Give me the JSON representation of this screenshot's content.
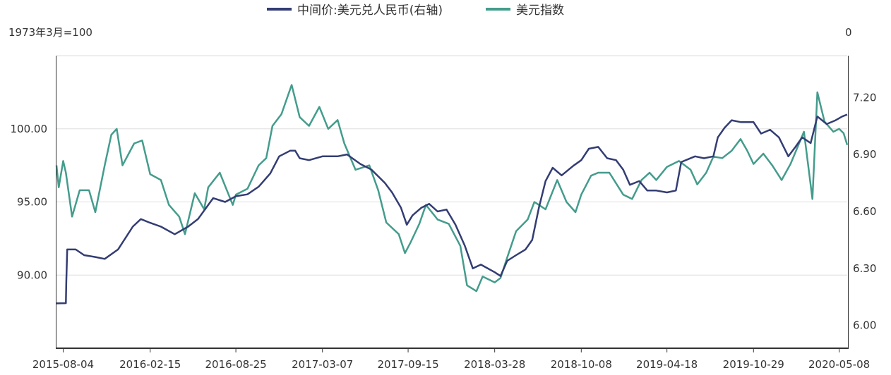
{
  "chart_data": {
    "type": "line",
    "left_axis_unit": "1973年3月=100",
    "right_axis_top_label": "0",
    "y_left": {
      "lim": [
        85.0,
        105.0
      ],
      "ticks": [
        90.0,
        95.0,
        100.0
      ],
      "tick_labels": [
        "90.00",
        "95.00",
        "100.00"
      ]
    },
    "y_right": {
      "lim": [
        5.88,
        7.42
      ],
      "ticks": [
        6.0,
        6.3,
        6.6,
        6.9,
        7.2
      ],
      "tick_labels": [
        "6.00",
        "6.30",
        "6.60",
        "6.90",
        "7.20"
      ]
    },
    "x_ticks": [
      "2015-08-04",
      "2016-02-15",
      "2016-08-25",
      "2017-03-07",
      "2017-09-15",
      "2018-03-28",
      "2018-10-08",
      "2019-04-18",
      "2019-10-29",
      "2020-05-08"
    ],
    "x_range": [
      "2015-07-20",
      "2020-05-26"
    ],
    "grid": true,
    "legend_position": "top-center",
    "series": [
      {
        "name": "中间价:美元兑人民币(右轴)",
        "axis": "right",
        "color": "#333d73",
        "points": [
          [
            "2015-07-20",
            6.116
          ],
          [
            "2015-08-10",
            6.117
          ],
          [
            "2015-08-11",
            6.23
          ],
          [
            "2015-08-13",
            6.4
          ],
          [
            "2015-09-01",
            6.4
          ],
          [
            "2015-09-20",
            6.37
          ],
          [
            "2015-10-15",
            6.36
          ],
          [
            "2015-11-05",
            6.35
          ],
          [
            "2015-12-05",
            6.4
          ],
          [
            "2016-01-07",
            6.52
          ],
          [
            "2016-01-25",
            6.56
          ],
          [
            "2016-02-15",
            6.54
          ],
          [
            "2016-03-10",
            6.52
          ],
          [
            "2016-04-10",
            6.48
          ],
          [
            "2016-05-10",
            6.52
          ],
          [
            "2016-06-01",
            6.56
          ],
          [
            "2016-07-05",
            6.67
          ],
          [
            "2016-08-01",
            6.65
          ],
          [
            "2016-08-25",
            6.68
          ],
          [
            "2016-09-20",
            6.69
          ],
          [
            "2016-10-15",
            6.73
          ],
          [
            "2016-11-10",
            6.8
          ],
          [
            "2016-11-30",
            6.89
          ],
          [
            "2016-12-25",
            6.92
          ],
          [
            "2017-01-05",
            6.92
          ],
          [
            "2017-01-15",
            6.88
          ],
          [
            "2017-02-05",
            6.87
          ],
          [
            "2017-03-07",
            6.89
          ],
          [
            "2017-04-10",
            6.89
          ],
          [
            "2017-05-01",
            6.9
          ],
          [
            "2017-05-31",
            6.85
          ],
          [
            "2017-06-25",
            6.82
          ],
          [
            "2017-07-25",
            6.75
          ],
          [
            "2017-08-10",
            6.7
          ],
          [
            "2017-08-30",
            6.62
          ],
          [
            "2017-09-12",
            6.53
          ],
          [
            "2017-09-25",
            6.58
          ],
          [
            "2017-10-15",
            6.62
          ],
          [
            "2017-11-01",
            6.64
          ],
          [
            "2017-11-20",
            6.6
          ],
          [
            "2017-12-10",
            6.61
          ],
          [
            "2017-12-30",
            6.53
          ],
          [
            "2018-01-20",
            6.42
          ],
          [
            "2018-02-07",
            6.3
          ],
          [
            "2018-02-25",
            6.32
          ],
          [
            "2018-03-28",
            6.28
          ],
          [
            "2018-04-10",
            6.26
          ],
          [
            "2018-04-25",
            6.34
          ],
          [
            "2018-05-15",
            6.37
          ],
          [
            "2018-06-05",
            6.4
          ],
          [
            "2018-06-20",
            6.45
          ],
          [
            "2018-07-05",
            6.62
          ],
          [
            "2018-07-20",
            6.76
          ],
          [
            "2018-08-05",
            6.83
          ],
          [
            "2018-08-25",
            6.79
          ],
          [
            "2018-09-20",
            6.84
          ],
          [
            "2018-10-08",
            6.87
          ],
          [
            "2018-10-25",
            6.93
          ],
          [
            "2018-11-15",
            6.94
          ],
          [
            "2018-12-05",
            6.88
          ],
          [
            "2018-12-25",
            6.87
          ],
          [
            "2019-01-10",
            6.82
          ],
          [
            "2019-01-25",
            6.74
          ],
          [
            "2019-02-15",
            6.76
          ],
          [
            "2019-03-05",
            6.71
          ],
          [
            "2019-03-25",
            6.71
          ],
          [
            "2019-04-18",
            6.7
          ],
          [
            "2019-05-08",
            6.71
          ],
          [
            "2019-05-20",
            6.86
          ],
          [
            "2019-06-20",
            6.89
          ],
          [
            "2019-07-10",
            6.88
          ],
          [
            "2019-07-31",
            6.89
          ],
          [
            "2019-08-10",
            6.99
          ],
          [
            "2019-08-25",
            7.04
          ],
          [
            "2019-09-10",
            7.08
          ],
          [
            "2019-10-01",
            7.07
          ],
          [
            "2019-10-29",
            7.07
          ],
          [
            "2019-11-15",
            7.01
          ],
          [
            "2019-12-05",
            7.03
          ],
          [
            "2019-12-25",
            6.99
          ],
          [
            "2020-01-15",
            6.89
          ],
          [
            "2020-01-31",
            6.94
          ],
          [
            "2020-02-15",
            6.99
          ],
          [
            "2020-03-05",
            6.96
          ],
          [
            "2020-03-20",
            7.1
          ],
          [
            "2020-04-10",
            7.06
          ],
          [
            "2020-04-30",
            7.08
          ],
          [
            "2020-05-15",
            7.1
          ],
          [
            "2020-05-26",
            7.11
          ]
        ]
      },
      {
        "name": "美元指数",
        "axis": "left",
        "color": "#449c8c",
        "points": [
          [
            "2015-07-20",
            97.5
          ],
          [
            "2015-07-25",
            96.0
          ],
          [
            "2015-08-04",
            97.8
          ],
          [
            "2015-08-10",
            97.0
          ],
          [
            "2015-08-24",
            94.0
          ],
          [
            "2015-09-10",
            95.8
          ],
          [
            "2015-10-01",
            95.8
          ],
          [
            "2015-10-15",
            94.3
          ],
          [
            "2015-11-05",
            97.5
          ],
          [
            "2015-11-20",
            99.6
          ],
          [
            "2015-12-02",
            100.0
          ],
          [
            "2015-12-15",
            97.5
          ],
          [
            "2016-01-10",
            99.0
          ],
          [
            "2016-01-28",
            99.2
          ],
          [
            "2016-02-15",
            96.9
          ],
          [
            "2016-03-10",
            96.5
          ],
          [
            "2016-03-28",
            94.8
          ],
          [
            "2016-04-20",
            94.0
          ],
          [
            "2016-05-03",
            92.8
          ],
          [
            "2016-05-25",
            95.6
          ],
          [
            "2016-06-15",
            94.5
          ],
          [
            "2016-06-24",
            96.0
          ],
          [
            "2016-07-20",
            97.0
          ],
          [
            "2016-08-18",
            94.8
          ],
          [
            "2016-08-25",
            95.5
          ],
          [
            "2016-09-20",
            95.9
          ],
          [
            "2016-10-15",
            97.5
          ],
          [
            "2016-11-01",
            98.0
          ],
          [
            "2016-11-15",
            100.2
          ],
          [
            "2016-12-05",
            101.0
          ],
          [
            "2016-12-28",
            103.0
          ],
          [
            "2017-01-15",
            100.8
          ],
          [
            "2017-02-05",
            100.2
          ],
          [
            "2017-02-28",
            101.5
          ],
          [
            "2017-03-20",
            100.0
          ],
          [
            "2017-04-10",
            100.6
          ],
          [
            "2017-04-25",
            99.0
          ],
          [
            "2017-05-20",
            97.2
          ],
          [
            "2017-06-20",
            97.5
          ],
          [
            "2017-07-10",
            95.8
          ],
          [
            "2017-07-28",
            93.6
          ],
          [
            "2017-08-25",
            92.8
          ],
          [
            "2017-09-08",
            91.5
          ],
          [
            "2017-09-20",
            92.2
          ],
          [
            "2017-10-10",
            93.5
          ],
          [
            "2017-10-25",
            94.8
          ],
          [
            "2017-11-20",
            93.8
          ],
          [
            "2017-12-15",
            93.5
          ],
          [
            "2018-01-10",
            92.0
          ],
          [
            "2018-01-25",
            89.3
          ],
          [
            "2018-02-15",
            88.9
          ],
          [
            "2018-03-01",
            89.9
          ],
          [
            "2018-03-28",
            89.5
          ],
          [
            "2018-04-10",
            89.8
          ],
          [
            "2018-04-25",
            91.2
          ],
          [
            "2018-05-15",
            93.0
          ],
          [
            "2018-06-10",
            93.8
          ],
          [
            "2018-06-25",
            95.0
          ],
          [
            "2018-07-20",
            94.5
          ],
          [
            "2018-08-15",
            96.5
          ],
          [
            "2018-09-05",
            95.0
          ],
          [
            "2018-09-25",
            94.3
          ],
          [
            "2018-10-08",
            95.5
          ],
          [
            "2018-10-30",
            96.8
          ],
          [
            "2018-11-15",
            97.0
          ],
          [
            "2018-12-10",
            97.0
          ],
          [
            "2019-01-10",
            95.5
          ],
          [
            "2019-01-30",
            95.2
          ],
          [
            "2019-02-20",
            96.5
          ],
          [
            "2019-03-10",
            97.0
          ],
          [
            "2019-03-25",
            96.5
          ],
          [
            "2019-04-18",
            97.4
          ],
          [
            "2019-05-15",
            97.8
          ],
          [
            "2019-06-10",
            97.2
          ],
          [
            "2019-06-25",
            96.2
          ],
          [
            "2019-07-15",
            97.0
          ],
          [
            "2019-07-31",
            98.1
          ],
          [
            "2019-08-20",
            98.0
          ],
          [
            "2019-09-10",
            98.5
          ],
          [
            "2019-09-30",
            99.3
          ],
          [
            "2019-10-15",
            98.5
          ],
          [
            "2019-10-29",
            97.6
          ],
          [
            "2019-11-20",
            98.3
          ],
          [
            "2019-12-10",
            97.5
          ],
          [
            "2019-12-31",
            96.5
          ],
          [
            "2020-01-20",
            97.6
          ],
          [
            "2020-02-19",
            99.8
          ],
          [
            "2020-03-09",
            95.2
          ],
          [
            "2020-03-20",
            102.5
          ],
          [
            "2020-04-05",
            100.5
          ],
          [
            "2020-04-25",
            99.8
          ],
          [
            "2020-05-08",
            100.0
          ],
          [
            "2020-05-18",
            99.7
          ],
          [
            "2020-05-26",
            98.9
          ]
        ]
      }
    ]
  }
}
